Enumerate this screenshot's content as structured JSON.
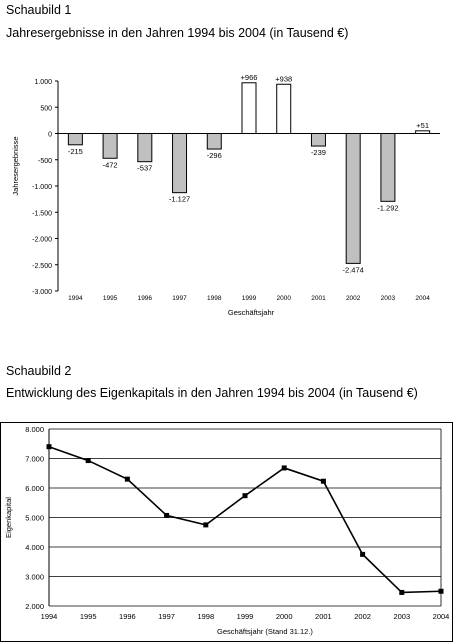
{
  "headings": {
    "chart1_label": "Schaubild 1",
    "chart1_title": "Jahresergebnisse in den Jahren  1994 bis 2004  (in Tausend €)",
    "chart2_label": "Schaubild 2",
    "chart2_title": "Entwicklung des Eigenkapitals in den Jahren  1994 bis 2004  (in Tausend €)"
  },
  "chart_data": [
    {
      "type": "bar",
      "title": "Jahresergebnisse in den Jahren  1994 bis 2004  (in Tausend €)",
      "xlabel": "Geschäftsjahr",
      "ylabel": "Jahresergebnisse",
      "categories": [
        "1994",
        "1995",
        "1996",
        "1997",
        "1998",
        "1999",
        "2000",
        "2001",
        "2002",
        "2003",
        "2004"
      ],
      "values": [
        -215,
        -472,
        -537,
        -1127,
        -296,
        966,
        938,
        -239,
        -2474,
        -1292,
        51
      ],
      "data_labels": [
        "-215",
        "-472",
        "-537",
        "-1.127",
        "-296",
        "+966",
        "+938",
        "-239",
        "-2.474",
        "-1.292",
        "+51"
      ],
      "yticks": [
        1000,
        500,
        0,
        -500,
        -1000,
        -1500,
        -2000,
        -2500,
        -3000
      ],
      "ytick_labels": [
        "1.000",
        "500",
        "0",
        "-500",
        "-1.000",
        "-1.500",
        "-2.000",
        "-2.500",
        "-3.000"
      ],
      "ylim": [
        -3000,
        1000
      ],
      "grid": false,
      "colors": {
        "negative": "#c0c0c0",
        "positive": "#ffffff",
        "outline": "#000000"
      }
    },
    {
      "type": "line",
      "title": "Entwicklung des Eigenkapitals in den Jahren  1994 bis 2004  (in Tausend €)",
      "xlabel": "Geschäftsjahr (Stand 31.12.)",
      "ylabel": "Eigenkapital",
      "x": [
        "1994",
        "1995",
        "1996",
        "1997",
        "1998",
        "1999",
        "2000",
        "2001",
        "2002",
        "2003",
        "2004"
      ],
      "y": [
        7400,
        6930,
        6300,
        5070,
        4750,
        5740,
        6680,
        6230,
        3750,
        2460,
        2500
      ],
      "yticks": [
        2000,
        3000,
        4000,
        5000,
        6000,
        7000,
        8000
      ],
      "ytick_labels": [
        "2.000",
        "3.000",
        "4.000",
        "5.000",
        "6.000",
        "7.000",
        "8.000"
      ],
      "ylim": [
        2000,
        8000
      ],
      "grid": true,
      "colors": {
        "line": "#000000",
        "marker": "#000000"
      }
    }
  ]
}
